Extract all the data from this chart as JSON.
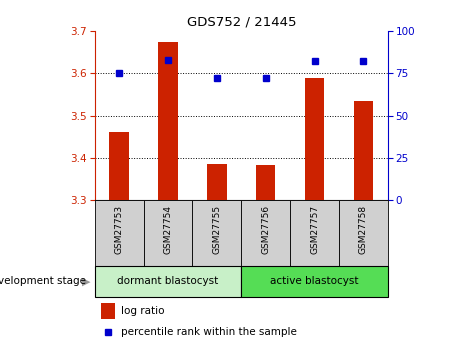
{
  "title": "GDS752 / 21445",
  "samples": [
    "GSM27753",
    "GSM27754",
    "GSM27755",
    "GSM27756",
    "GSM27757",
    "GSM27758"
  ],
  "log_ratios": [
    3.46,
    3.675,
    3.385,
    3.382,
    3.59,
    3.535
  ],
  "percentile_ranks": [
    75,
    83,
    72,
    72,
    82,
    82
  ],
  "bar_bottom": 3.3,
  "ylim_left": [
    3.3,
    3.7
  ],
  "ylim_right": [
    0,
    100
  ],
  "yticks_left": [
    3.3,
    3.4,
    3.5,
    3.6,
    3.7
  ],
  "yticks_right": [
    0,
    25,
    50,
    75,
    100
  ],
  "bar_color": "#cc2200",
  "dot_color": "#0000cc",
  "dormant_label": "dormant blastocyst",
  "active_label": "active blastocyst",
  "stage_label": "development stage",
  "legend_bar": "log ratio",
  "legend_dot": "percentile rank within the sample",
  "dormant_color": "#c8f0c8",
  "active_color": "#55dd55",
  "xtick_bg": "#d0d0d0",
  "right_axis_color": "#0000cc",
  "left_axis_color": "#cc2200",
  "grid_dotted_vals": [
    3.4,
    3.5,
    3.6
  ],
  "bar_width": 0.4
}
